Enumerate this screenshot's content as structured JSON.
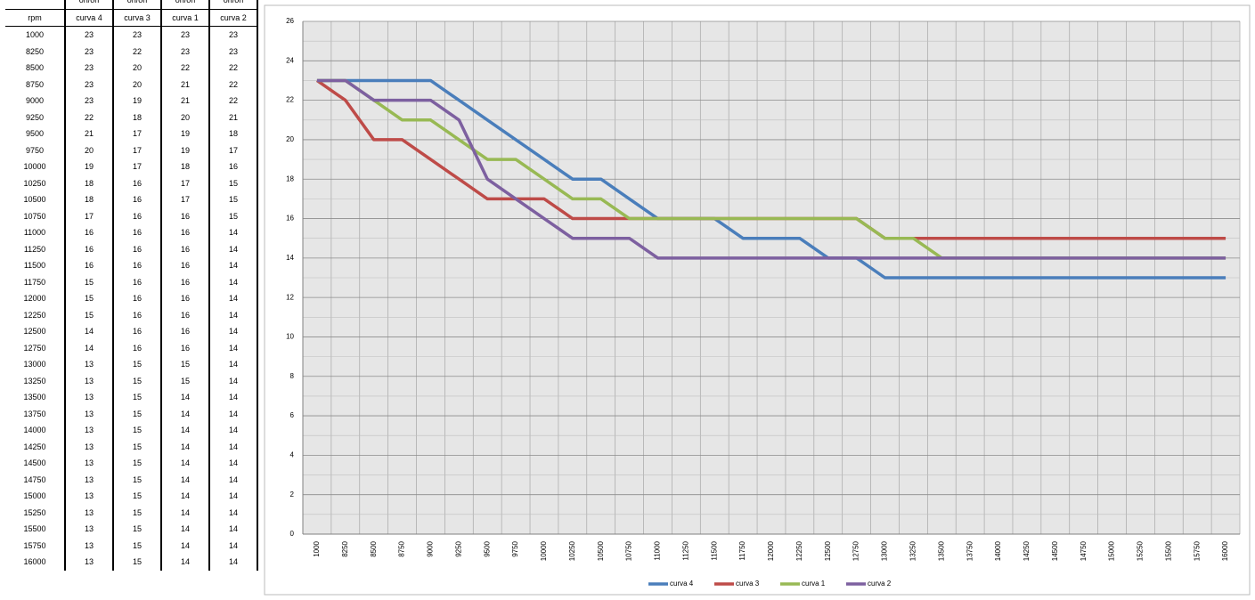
{
  "table": {
    "top": [
      "on/on",
      "on/on",
      "on/on",
      "on/on"
    ],
    "header": "rpm"
  },
  "chart_data": {
    "type": "line",
    "categories": [
      1000,
      8250,
      8500,
      8750,
      9000,
      9250,
      9500,
      9750,
      10000,
      10250,
      10500,
      10750,
      11000,
      11250,
      11500,
      11750,
      12000,
      12250,
      12500,
      12750,
      13000,
      13250,
      13500,
      13750,
      14000,
      14250,
      14500,
      14750,
      15000,
      15250,
      15500,
      15750,
      16000
    ],
    "series": [
      {
        "name": "curva 4",
        "color": "#4a7ebb",
        "values": [
          23,
          23,
          23,
          23,
          23,
          22,
          21,
          20,
          19,
          18,
          18,
          17,
          16,
          16,
          16,
          15,
          15,
          15,
          14,
          14,
          13,
          13,
          13,
          13,
          13,
          13,
          13,
          13,
          13,
          13,
          13,
          13,
          13
        ]
      },
      {
        "name": "curva 3",
        "color": "#be4b48",
        "values": [
          23,
          22,
          20,
          20,
          19,
          18,
          17,
          17,
          17,
          16,
          16,
          16,
          16,
          16,
          16,
          16,
          16,
          16,
          16,
          16,
          15,
          15,
          15,
          15,
          15,
          15,
          15,
          15,
          15,
          15,
          15,
          15,
          15
        ]
      },
      {
        "name": "curva 1",
        "color": "#98b954",
        "values": [
          23,
          23,
          22,
          21,
          21,
          20,
          19,
          19,
          18,
          17,
          17,
          16,
          16,
          16,
          16,
          16,
          16,
          16,
          16,
          16,
          15,
          15,
          14,
          14,
          14,
          14,
          14,
          14,
          14,
          14,
          14,
          14,
          14
        ]
      },
      {
        "name": "curva 2",
        "color": "#7d60a0",
        "values": [
          23,
          23,
          22,
          22,
          22,
          21,
          18,
          17,
          16,
          15,
          15,
          15,
          14,
          14,
          14,
          14,
          14,
          14,
          14,
          14,
          14,
          14,
          14,
          14,
          14,
          14,
          14,
          14,
          14,
          14,
          14,
          14,
          14
        ]
      }
    ],
    "ylim": [
      0,
      26
    ],
    "yticks": [
      0,
      2,
      4,
      6,
      8,
      10,
      12,
      14,
      16,
      18,
      20,
      22,
      24,
      26
    ],
    "grid": true,
    "legend": "bottom"
  }
}
